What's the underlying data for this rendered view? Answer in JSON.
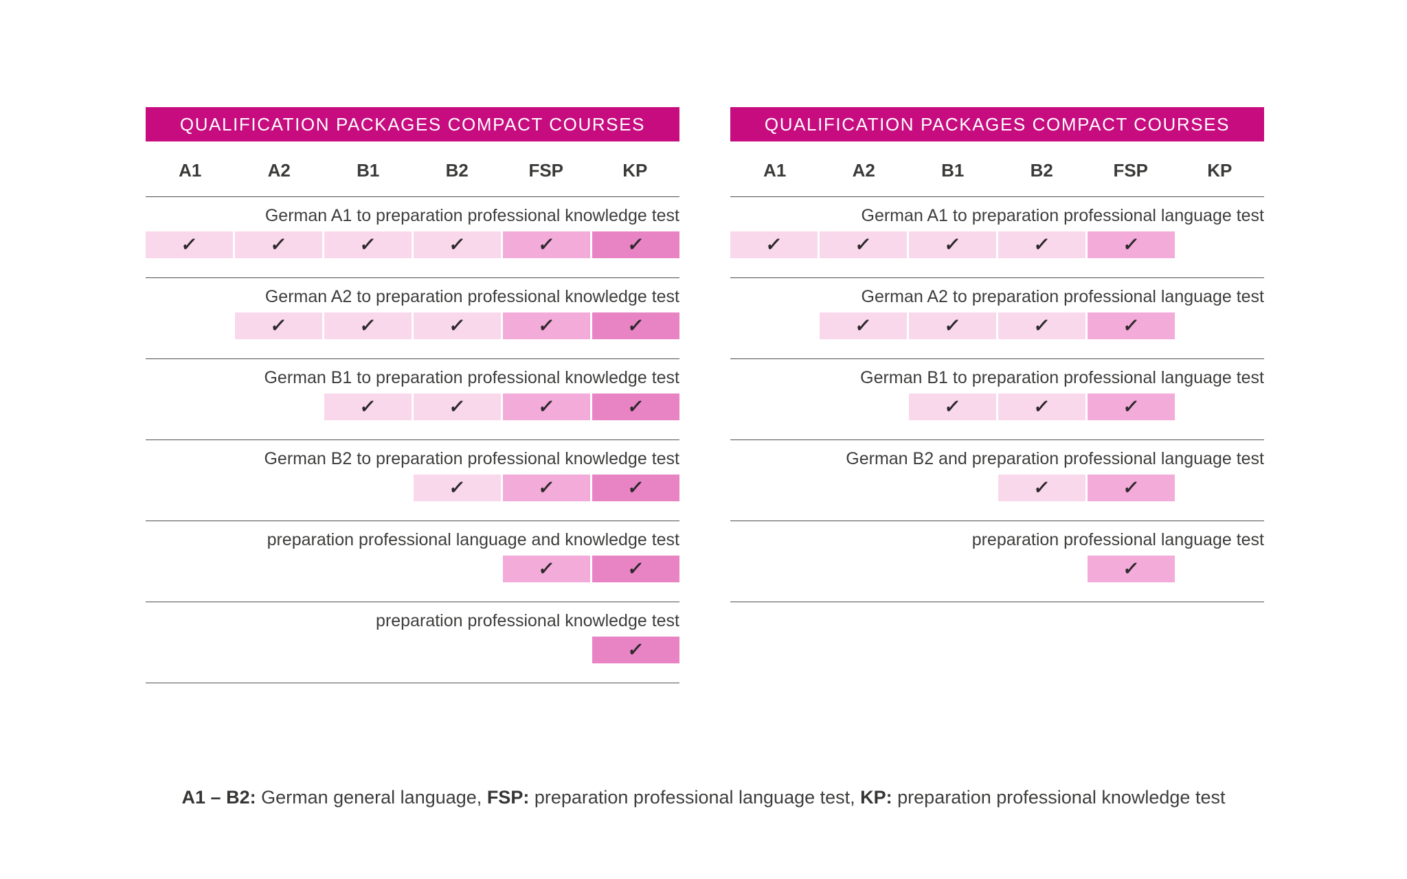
{
  "colors": {
    "header_bg": "#c60c7f",
    "header_text": "#ffffff",
    "cell_light": "#f9d8ec",
    "cell_medium": "#f3abd9",
    "cell_dark": "#e884c4",
    "rule": "#4e4e4e",
    "check": "#2d282b"
  },
  "check_glyph": "✓",
  "tables": [
    {
      "title": "QUALIFICATION PACKAGES COMPACT COURSES",
      "columns": [
        "A1",
        "A2",
        "B1",
        "B2",
        "FSP",
        "KP"
      ],
      "rows": [
        {
          "label": "German A1 to preparation professional knowledge test",
          "cells": [
            "light",
            "light",
            "light",
            "light",
            "medium",
            "dark"
          ]
        },
        {
          "label": "German A2 to preparation professional knowledge test",
          "cells": [
            null,
            "light",
            "light",
            "light",
            "medium",
            "dark"
          ]
        },
        {
          "label": "German B1 to preparation professional knowledge test",
          "cells": [
            null,
            null,
            "light",
            "light",
            "medium",
            "dark"
          ]
        },
        {
          "label": "German B2 to preparation professional knowledge test",
          "cells": [
            null,
            null,
            null,
            "light",
            "medium",
            "dark"
          ]
        },
        {
          "label": "preparation professional language and knowledge test",
          "cells": [
            null,
            null,
            null,
            null,
            "medium",
            "dark"
          ]
        },
        {
          "label": "preparation professional knowledge test",
          "cells": [
            null,
            null,
            null,
            null,
            null,
            "dark"
          ]
        }
      ]
    },
    {
      "title": "QUALIFICATION PACKAGES COMPACT COURSES",
      "columns": [
        "A1",
        "A2",
        "B1",
        "B2",
        "FSP",
        "KP"
      ],
      "rows": [
        {
          "label": "German A1 to preparation professional language test",
          "cells": [
            "light",
            "light",
            "light",
            "light",
            "medium",
            null
          ]
        },
        {
          "label": "German A2 to preparation professional language test",
          "cells": [
            null,
            "light",
            "light",
            "light",
            "medium",
            null
          ]
        },
        {
          "label": "German B1 to preparation professional language test",
          "cells": [
            null,
            null,
            "light",
            "light",
            "medium",
            null
          ]
        },
        {
          "label": "German B2 and preparation professional language test",
          "cells": [
            null,
            null,
            null,
            "light",
            "medium",
            null
          ]
        },
        {
          "label": "preparation professional language test",
          "cells": [
            null,
            null,
            null,
            null,
            "medium",
            null
          ]
        }
      ]
    }
  ],
  "legend": {
    "segments": [
      {
        "label": "A1 – B2:",
        "text": " German general language, "
      },
      {
        "label": "FSP:",
        "text": " preparation professional language test, "
      },
      {
        "label": "KP:",
        "text": " preparation professional knowledge test"
      }
    ]
  }
}
